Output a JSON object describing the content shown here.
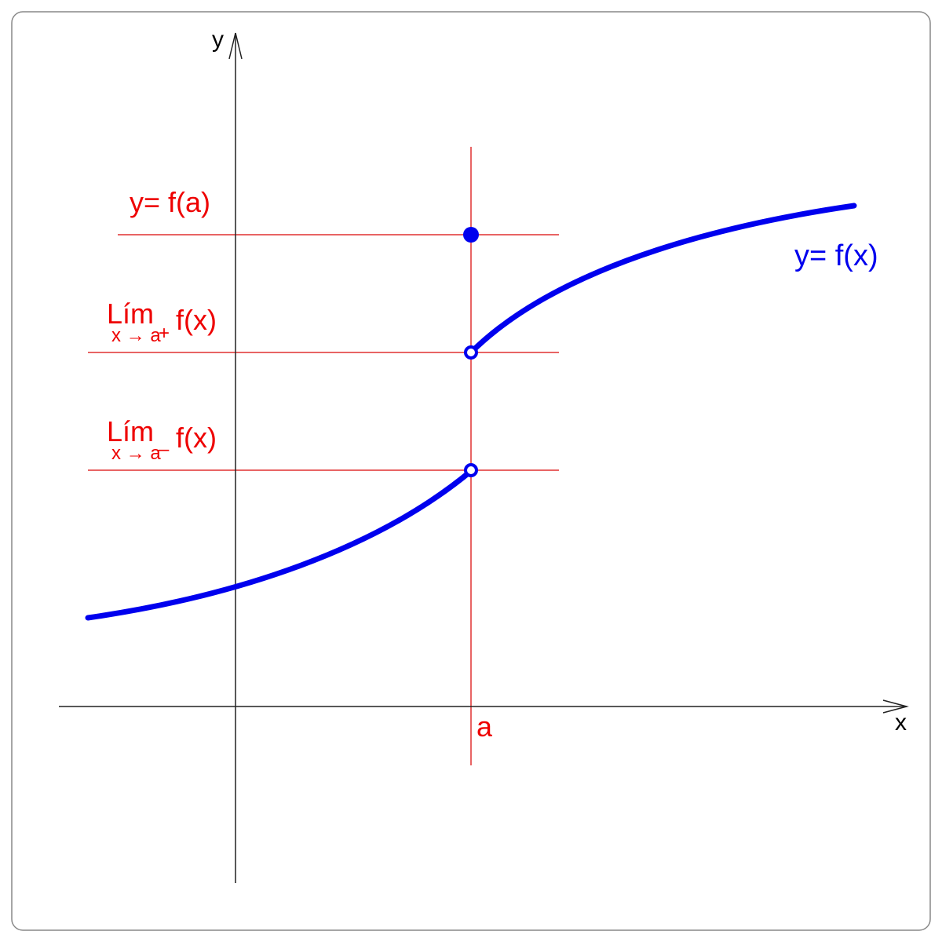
{
  "axes": {
    "x_label": "x",
    "y_label": "y"
  },
  "labels": {
    "point_a": "a",
    "fa": "y= f(a)",
    "curve": "y= f(x)",
    "lim_right_main": "Lím",
    "lim_right_sub": "x → a",
    "lim_right_sign": "+",
    "lim_right_fx": "f(x)",
    "lim_left_main": "Lím",
    "lim_left_sub": "x → a",
    "lim_left_sign": "–",
    "lim_left_fx": "f(x)"
  },
  "colors": {
    "curve": "#0000ee",
    "guides": "#ee0000",
    "axes": "#000000"
  }
}
